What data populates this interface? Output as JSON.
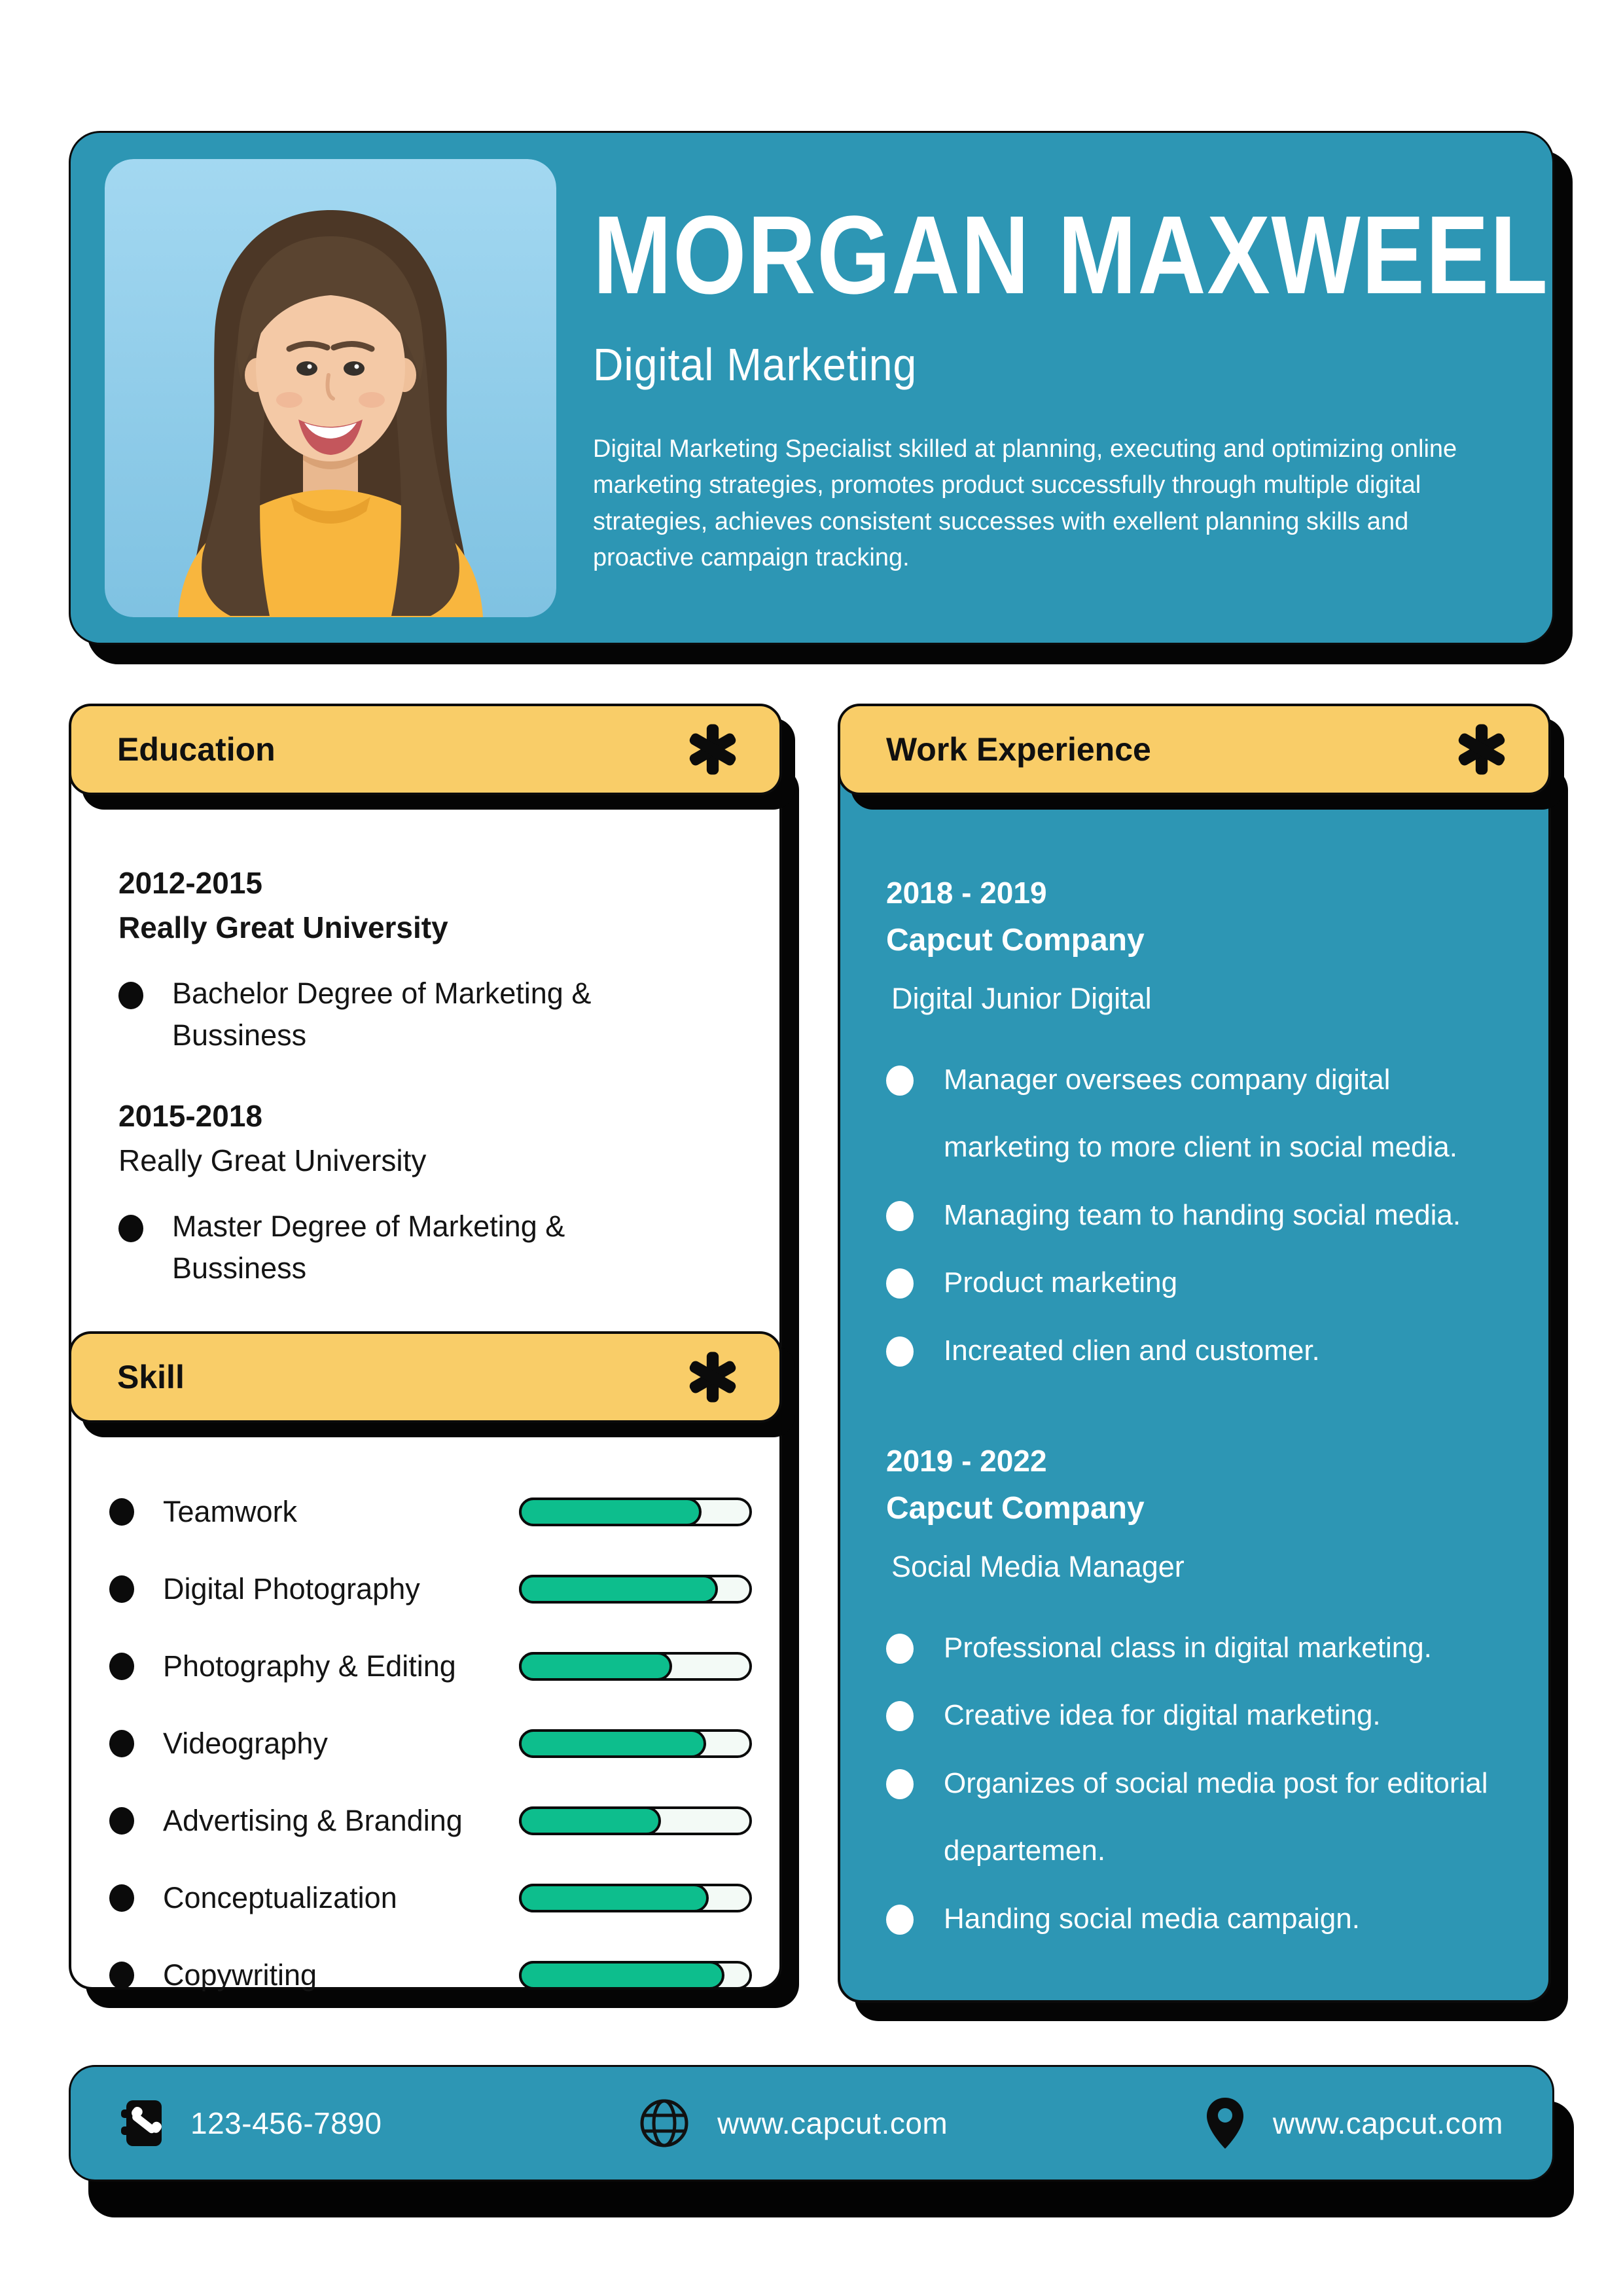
{
  "colors": {
    "teal": "#2D96B4",
    "yellow": "#F9CD68",
    "green": "#0DBE8D",
    "photo_bg": "#8FCBE9",
    "ink": "#0b0b0b"
  },
  "header": {
    "name": "MORGAN MAXWEEL",
    "role": "Digital Marketing",
    "summary": "Digital Marketing Specialist skilled at planning, executing and optimizing online marketing strategies, promotes product successfully through multiple digital strategies, achieves consistent successes with exellent planning skills and proactive campaign tracking.",
    "photo_alt": "portrait-woman-yellow-sweater"
  },
  "sections": {
    "education": {
      "title": "Education",
      "marker": "✱",
      "items": [
        {
          "years": "2012-2015",
          "school": "Really Great University",
          "bold_school": true,
          "degree": "Bachelor Degree of Marketing & Bussiness"
        },
        {
          "years": "2015-2018",
          "school": "Really Great University",
          "bold_school": false,
          "degree": "Master Degree of Marketing & Bussiness"
        }
      ]
    },
    "skill": {
      "title": "Skill",
      "marker": "✱",
      "items": [
        {
          "label": "Teamwork",
          "level": 78
        },
        {
          "label": "Digital Photography",
          "level": 85
        },
        {
          "label": "Photography & Editing",
          "level": 65
        },
        {
          "label": "Videography",
          "level": 80
        },
        {
          "label": "Advertising & Branding",
          "level": 60
        },
        {
          "label": "Conceptualization",
          "level": 81
        },
        {
          "label": "Copywriting",
          "level": 88
        }
      ]
    },
    "work": {
      "title": "Work Experience",
      "marker": "✱",
      "jobs": [
        {
          "years": "2018 - 2019",
          "company": "Capcut Company",
          "role": "Digital Junior Digital",
          "points": [
            "Manager oversees company digital marketing to more client in social media.",
            "Managing team to handing social media.",
            "Product marketing",
            "Increated clien and customer."
          ]
        },
        {
          "years": "2019 - 2022",
          "company": "Capcut Company",
          "role": "Social Media Manager",
          "points": [
            "Professional class in digital marketing.",
            "Creative idea for digital marketing.",
            "Organizes of social media post for editorial departemen.",
            "Handing social media campaign."
          ]
        }
      ]
    }
  },
  "footer": {
    "items": [
      {
        "icon": "phone-contact-icon",
        "text": "123-456-7890"
      },
      {
        "icon": "globe-icon",
        "text": "www.capcut.com"
      },
      {
        "icon": "location-pin-icon",
        "text": "www.capcut.com"
      }
    ]
  }
}
